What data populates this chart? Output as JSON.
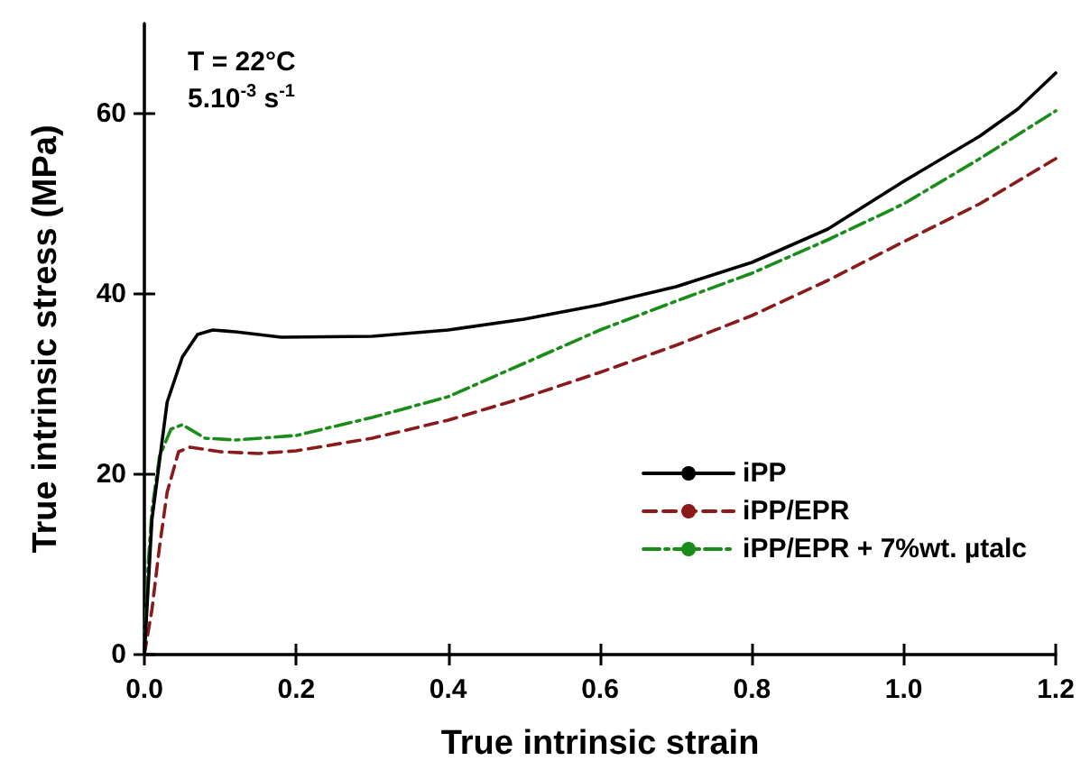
{
  "chart_data": {
    "type": "line",
    "xlabel": "True intrinsic strain",
    "ylabel": "True intrinsic stress (MPa)",
    "xlim": [
      0,
      1.2
    ],
    "xticks": [
      {
        "value": 0,
        "label": "0.0"
      },
      0.2,
      0.4,
      0.6,
      0.8,
      {
        "value": 1,
        "label": "1.0"
      },
      1.2
    ],
    "ylim": [
      0,
      70
    ],
    "yticks": [
      0,
      20,
      40,
      60
    ],
    "grid": false,
    "legend": "bottom right",
    "marker": "none",
    "annotations": [
      "T = 22°C",
      "5.10$^{-3}$ s$^{-1}$"
    ],
    "series": [
      {
        "name": "iPP",
        "color": "#000000",
        "line_style": "solid",
        "x": [
          0,
          0.01,
          0.03,
          0.05,
          0.07,
          0.09,
          0.12,
          0.18,
          0.3,
          0.4,
          0.5,
          0.6,
          0.7,
          0.8,
          0.9,
          1.0,
          1.1,
          1.15,
          1.2
        ],
        "values": [
          0,
          15,
          28,
          33,
          35.5,
          36,
          35.8,
          35.2,
          35.3,
          36,
          37.2,
          38.8,
          40.8,
          43.5,
          47.2,
          52.5,
          57.5,
          60.5,
          64.5
        ]
      },
      {
        "name": "iPP/EPR",
        "color": "#8b1a1a",
        "line_style": "dashed",
        "x": [
          0,
          0.01,
          0.02,
          0.03,
          0.045,
          0.06,
          0.1,
          0.15,
          0.2,
          0.3,
          0.4,
          0.5,
          0.6,
          0.7,
          0.8,
          0.9,
          1.0,
          1.1,
          1.2
        ],
        "values": [
          0,
          5,
          12,
          18,
          22.5,
          23,
          22.5,
          22.3,
          22.6,
          24,
          26,
          28.5,
          31.3,
          34.3,
          37.6,
          41.5,
          45.8,
          50,
          55
        ]
      },
      {
        "name": "iPP/EPR + 7%wt. µtalc",
        "color": "#1a8c1a",
        "line_style": "dashdot",
        "x": [
          0,
          0.005,
          0.01,
          0.02,
          0.035,
          0.05,
          0.08,
          0.12,
          0.2,
          0.3,
          0.4,
          0.5,
          0.6,
          0.7,
          0.8,
          0.9,
          1.0,
          1.1,
          1.2
        ],
        "values": [
          0,
          10,
          16,
          22,
          25,
          25.5,
          24,
          23.8,
          24.3,
          26.3,
          28.6,
          32.3,
          36,
          39.2,
          42.3,
          46,
          50,
          55,
          60.3
        ]
      }
    ]
  }
}
